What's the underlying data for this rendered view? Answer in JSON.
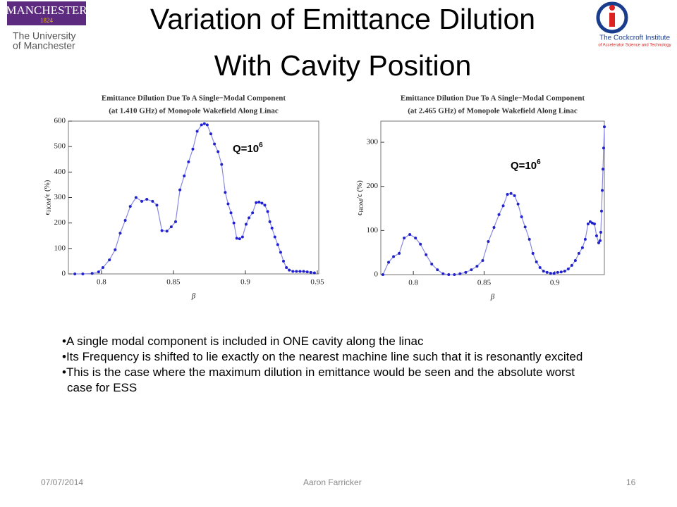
{
  "title": [
    "Variation of Emittance Dilution",
    "With Cavity Position"
  ],
  "logos": {
    "left": {
      "name": "MANCHESTER",
      "year": "1824",
      "line1": "The University",
      "line2": "of Manchester"
    },
    "right": {
      "line1": "The Cockcroft Institute",
      "line2": "of Accelerator Science and Technology"
    }
  },
  "chart_data": [
    {
      "type": "line",
      "title": [
        "Emittance Dilution Due To A Single−Modal Component",
        "(at 1.410 GHz) of Monopole Wakefield Along Linac"
      ],
      "xlabel": "β",
      "ylabel": {
        "main": "ϵ",
        "sub": "HOM",
        "rest": "/ϵ (%)"
      },
      "annotation": {
        "text": "Q=10",
        "exponent": "6"
      },
      "color": "#2222cc",
      "xlim": [
        0.777,
        0.951
      ],
      "xticks": [
        0.8,
        0.85,
        0.9,
        0.95
      ],
      "ylim": [
        0,
        600
      ],
      "yticks": [
        0,
        100,
        200,
        300,
        400,
        500,
        600
      ],
      "x": [
        0.7815,
        0.787,
        0.7935,
        0.798,
        0.801,
        0.8055,
        0.8095,
        0.813,
        0.8165,
        0.82,
        0.824,
        0.828,
        0.8315,
        0.8355,
        0.8385,
        0.842,
        0.8455,
        0.8485,
        0.8515,
        0.8545,
        0.8575,
        0.8605,
        0.8635,
        0.8665,
        0.8695,
        0.8715,
        0.8735,
        0.876,
        0.8785,
        0.881,
        0.8835,
        0.886,
        0.888,
        0.89,
        0.892,
        0.894,
        0.896,
        0.898,
        0.9005,
        0.9025,
        0.905,
        0.9075,
        0.9095,
        0.9115,
        0.9135,
        0.9155,
        0.917,
        0.9185,
        0.9205,
        0.9225,
        0.9245,
        0.9265,
        0.9285,
        0.9305,
        0.933,
        0.9355,
        0.938,
        0.9405,
        0.943,
        0.9455,
        0.948
      ],
      "values": [
        0,
        0,
        2,
        8,
        25,
        55,
        95,
        160,
        210,
        265,
        300,
        285,
        293,
        285,
        270,
        170,
        168,
        185,
        205,
        330,
        385,
        440,
        490,
        560,
        585,
        590,
        585,
        550,
        510,
        480,
        430,
        320,
        275,
        240,
        200,
        140,
        138,
        145,
        195,
        220,
        240,
        280,
        282,
        278,
        270,
        245,
        205,
        180,
        145,
        115,
        85,
        50,
        25,
        15,
        10,
        10,
        10,
        10,
        8,
        6,
        4
      ]
    },
    {
      "type": "line",
      "title": [
        "Emittance Dilution Due To A Single−Modal Component",
        "(at 2.465 GHz) of Monopole Wakefield Along Linac"
      ],
      "xlabel": "β",
      "ylabel": {
        "main": "ϵ",
        "sub": "HOM",
        "rest": "/ϵ (%)"
      },
      "annotation": {
        "text": "Q=10",
        "exponent": "6"
      },
      "color": "#2222cc",
      "xlim": [
        0.777,
        0.935
      ],
      "xticks": [
        0.8,
        0.85,
        0.9
      ],
      "ylim": [
        0,
        348
      ],
      "yticks": [
        0,
        100,
        200,
        300
      ],
      "x": [
        0.7785,
        0.7825,
        0.786,
        0.79,
        0.7935,
        0.7975,
        0.8015,
        0.805,
        0.809,
        0.813,
        0.817,
        0.821,
        0.825,
        0.829,
        0.833,
        0.837,
        0.841,
        0.845,
        0.849,
        0.853,
        0.857,
        0.8605,
        0.8635,
        0.8665,
        0.869,
        0.8715,
        0.874,
        0.8765,
        0.879,
        0.882,
        0.8845,
        0.887,
        0.8895,
        0.892,
        0.8945,
        0.897,
        0.8995,
        0.902,
        0.9045,
        0.907,
        0.9095,
        0.912,
        0.9145,
        0.917,
        0.9195,
        0.9215,
        0.9235,
        0.925,
        0.9265,
        0.928,
        0.9295,
        0.931,
        0.932,
        0.9325,
        0.933,
        0.9335,
        0.934,
        0.9345,
        0.935
      ],
      "values": [
        0,
        28,
        41,
        48,
        83,
        91,
        83,
        69,
        45,
        24,
        11,
        2,
        0,
        0,
        2,
        5,
        11,
        19,
        32,
        75,
        107,
        136,
        156,
        182,
        184,
        179,
        160,
        131,
        108,
        80,
        48,
        29,
        16,
        8,
        5,
        3,
        3,
        5,
        6,
        8,
        13,
        21,
        32,
        48,
        61,
        80,
        115,
        120,
        117,
        115,
        88,
        72,
        77,
        96,
        144,
        191,
        239,
        287,
        335
      ]
    }
  ],
  "bullets": [
    "A single modal component is included in ONE cavity along the linac",
    "Its Frequency is shifted to lie exactly on the nearest machine line such that it is resonantly excited",
    "This is the case where the maximum dilution in emittance would be seen and the absolute worst case for ESS"
  ],
  "footer": {
    "date": "07/07/2014",
    "author": "Aaron Farricker",
    "page": "16"
  }
}
